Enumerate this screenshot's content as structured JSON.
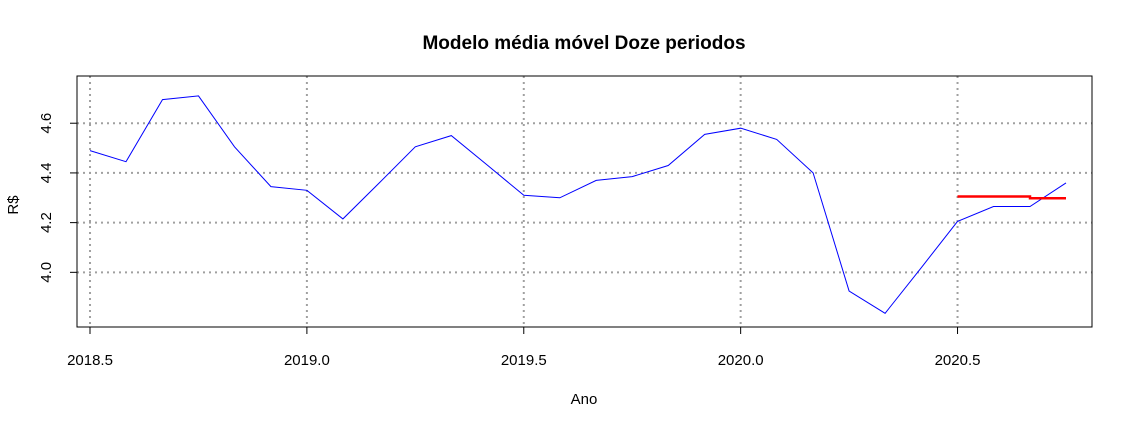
{
  "chart_data": {
    "type": "line",
    "title": "Modelo média móvel Doze periodos",
    "xlabel": "Ano",
    "ylabel": "R$",
    "xlim": [
      2018.47,
      2020.81
    ],
    "ylim": [
      3.78,
      4.79
    ],
    "x_ticks": [
      2018.5,
      2019.0,
      2019.5,
      2020.0,
      2020.5
    ],
    "x_tick_labels": [
      "2018.5",
      "2019.0",
      "2019.5",
      "2020.0",
      "2020.5"
    ],
    "y_ticks": [
      4.0,
      4.2,
      4.4,
      4.6
    ],
    "y_tick_labels": [
      "4.0",
      "4.2",
      "4.4",
      "4.6"
    ],
    "grid": true,
    "series": [
      {
        "color": "#0000ff",
        "x": [
          2018.5,
          2018.583,
          2018.667,
          2018.75,
          2018.833,
          2018.917,
          2019.0,
          2019.083,
          2019.167,
          2019.25,
          2019.333,
          2019.417,
          2019.5,
          2019.583,
          2019.667,
          2019.75,
          2019.833,
          2019.917,
          2020.0,
          2020.083,
          2020.167,
          2020.25,
          2020.333,
          2020.417,
          2020.5,
          2020.583,
          2020.667,
          2020.75
        ],
        "values": [
          4.49,
          4.445,
          4.695,
          4.71,
          4.505,
          4.345,
          4.33,
          4.215,
          4.36,
          4.505,
          4.55,
          4.43,
          4.31,
          4.3,
          4.37,
          4.385,
          4.43,
          4.555,
          4.58,
          4.535,
          4.4,
          3.925,
          3.835,
          4.02,
          4.205,
          4.265,
          4.265,
          4.36
        ]
      },
      {
        "color": "#ff0000",
        "x": [
          2020.5,
          2020.583,
          2020.667,
          2020.667,
          2020.75
        ],
        "values": [
          4.305,
          4.305,
          4.305,
          4.298,
          4.298
        ]
      }
    ]
  }
}
